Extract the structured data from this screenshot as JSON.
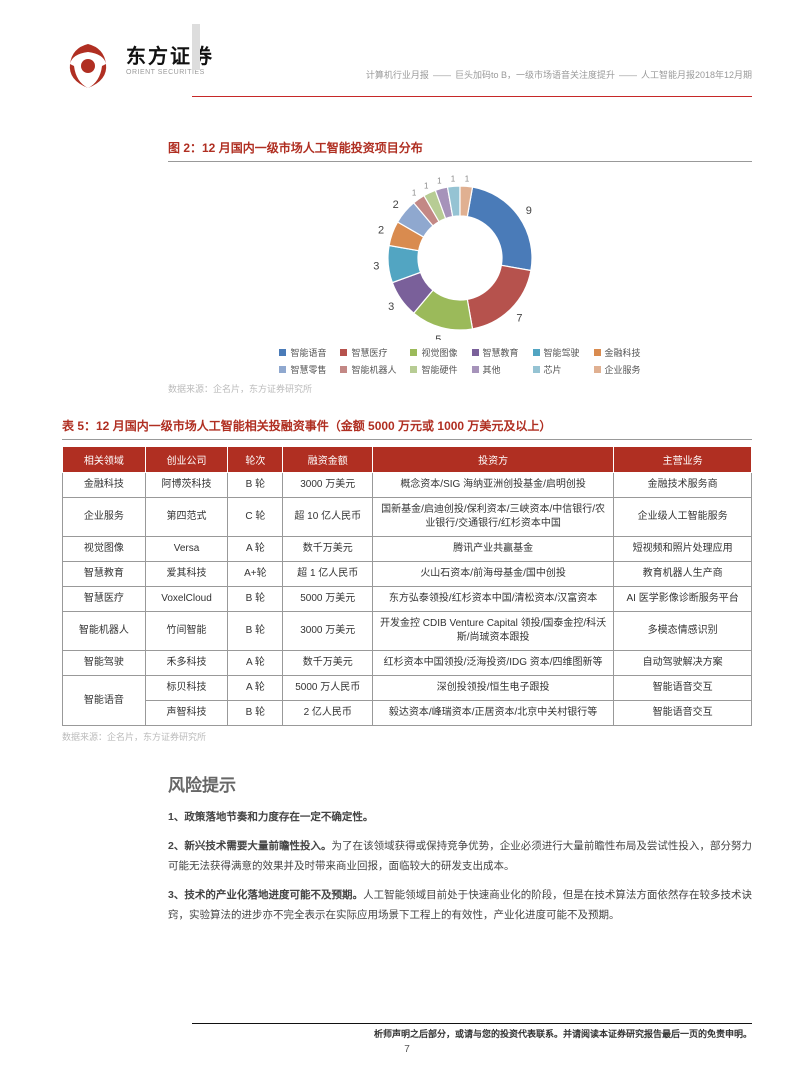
{
  "header": {
    "logo_cn": "东方证券",
    "logo_en": "ORIENT SECURITIES",
    "category": "计算机行业月报",
    "subtitle": "巨头加码to B，一级市场语音关注度提升",
    "issue": "人工智能月报2018年12月期"
  },
  "chart": {
    "title": "图 2：12 月国内一级市场人工智能投资项目分布",
    "type": "donut",
    "source": "数据来源：企名片，东方证券研究所",
    "outer_radius": 72,
    "inner_radius": 42,
    "bg_color": "#ffffff",
    "label_fontsize": 11,
    "legend_fontsize": 9,
    "segments": [
      {
        "label": "智能语音",
        "value": 9,
        "color": "#4a7bb8"
      },
      {
        "label": "智慧医疗",
        "value": 7,
        "color": "#b6524d"
      },
      {
        "label": "视觉图像",
        "value": 5,
        "color": "#9bba5a"
      },
      {
        "label": "智慧教育",
        "value": 3,
        "color": "#7a609a"
      },
      {
        "label": "智能驾驶",
        "value": 3,
        "color": "#52a5c2"
      },
      {
        "label": "金融科技",
        "value": 2,
        "color": "#d98b4f"
      },
      {
        "label": "智慧零售",
        "value": 2,
        "color": "#8fa8cf"
      },
      {
        "label": "智能机器人",
        "value": 1,
        "color": "#c38885"
      },
      {
        "label": "智能硬件",
        "value": 1,
        "color": "#b7cc94"
      },
      {
        "label": "其他",
        "value": 1,
        "color": "#a693ba"
      },
      {
        "label": "芯片",
        "value": 1,
        "color": "#95c3d3"
      },
      {
        "label": "企业服务",
        "value": 1,
        "color": "#e0b091"
      }
    ],
    "show_value_threshold": 2,
    "start_angle": 10
  },
  "table": {
    "title": "表 5：12 月国内一级市场人工智能相关投融资事件（金额 5000 万元或 1000 万美元及以上）",
    "source": "数据来源：企名片，东方证券研究所",
    "header_bg": "#b02f22",
    "header_color": "#ffffff",
    "border_color": "#999999",
    "cell_fontsize": 10,
    "columns": [
      "相关领域",
      "创业公司",
      "轮次",
      "融资金额",
      "投资方",
      "主营业务"
    ],
    "col_widths": [
      "12%",
      "12%",
      "8%",
      "13%",
      "35%",
      "20%"
    ],
    "col_align": [
      "center",
      "center",
      "center",
      "center",
      "center",
      "center"
    ],
    "rows": [
      {
        "domain": "金融科技",
        "company": "阿博茨科技",
        "round": "B 轮",
        "amount": "3000 万美元",
        "investors": "概念资本/SIG 海纳亚洲创投基金/启明创投",
        "business": "金融技术服务商"
      },
      {
        "domain": "企业服务",
        "company": "第四范式",
        "round": "C 轮",
        "amount": "超 10 亿人民币",
        "investors": "国新基金/启迪创投/保利资本/三峡资本/中信银行/农业银行/交通银行/红杉资本中国",
        "business": "企业级人工智能服务"
      },
      {
        "domain": "视觉图像",
        "company": "Versa",
        "round": "A 轮",
        "amount": "数千万美元",
        "investors": "腾讯产业共赢基金",
        "business": "短视频和照片处理应用"
      },
      {
        "domain": "智慧教育",
        "company": "爱其科技",
        "round": "A+轮",
        "amount": "超 1 亿人民币",
        "investors": "火山石资本/前海母基金/国中创投",
        "business": "教育机器人生产商"
      },
      {
        "domain": "智慧医疗",
        "company": "VoxelCloud",
        "round": "B 轮",
        "amount": "5000 万美元",
        "investors": "东方弘泰领投/红杉资本中国/清松资本/汉富资本",
        "business": "AI 医学影像诊断服务平台"
      },
      {
        "domain": "智能机器人",
        "company": "竹间智能",
        "round": "B 轮",
        "amount": "3000 万美元",
        "investors": "开发金控 CDIB Venture Capital 领投/国泰金控/科沃斯/尚珹资本跟投",
        "business": "多模态情感识别"
      },
      {
        "domain": "智能驾驶",
        "company": "禾多科技",
        "round": "A 轮",
        "amount": "数千万美元",
        "investors": "红杉资本中国领投/泛海投资/IDG 资本/四维图新等",
        "business": "自动驾驶解决方案"
      },
      {
        "domain": "智能语音",
        "company": "标贝科技",
        "round": "A 轮",
        "amount": "5000 万人民币",
        "investors": "深创投领投/恒生电子跟投",
        "business": "智能语音交互",
        "rowspan": 2
      },
      {
        "domain": "",
        "company": "声智科技",
        "round": "B 轮",
        "amount": "2 亿人民币",
        "investors": "毅达资本/峰瑞资本/正居资本/北京中关村银行等",
        "business": "智能语音交互"
      }
    ]
  },
  "risk": {
    "heading": "风险提示",
    "items": [
      {
        "num": "1、",
        "bold": "政策落地节奏和力度存在一定不确定性。",
        "body": ""
      },
      {
        "num": "2、",
        "bold": "新兴技术需要大量前瞻性投入。",
        "body": "为了在该领域获得或保持竞争优势，企业必须进行大量前瞻性布局及尝试性投入，部分努力可能无法获得满意的效果并及时带来商业回报，面临较大的研发支出成本。"
      },
      {
        "num": "3、",
        "bold": "技术的产业化落地进度可能不及预期。",
        "body": "人工智能领域目前处于快速商业化的阶段，但是在技术算法方面依然存在较多技术诀窍，实验算法的进步亦不完全表示在实际应用场景下工程上的有效性，产业化进度可能不及预期。"
      }
    ]
  },
  "footer": {
    "disclaimer": "析师声明之后部分，或请与您的投资代表联系。并请阅读本证券研究报告最后一页的免责申明。",
    "page": "7"
  }
}
